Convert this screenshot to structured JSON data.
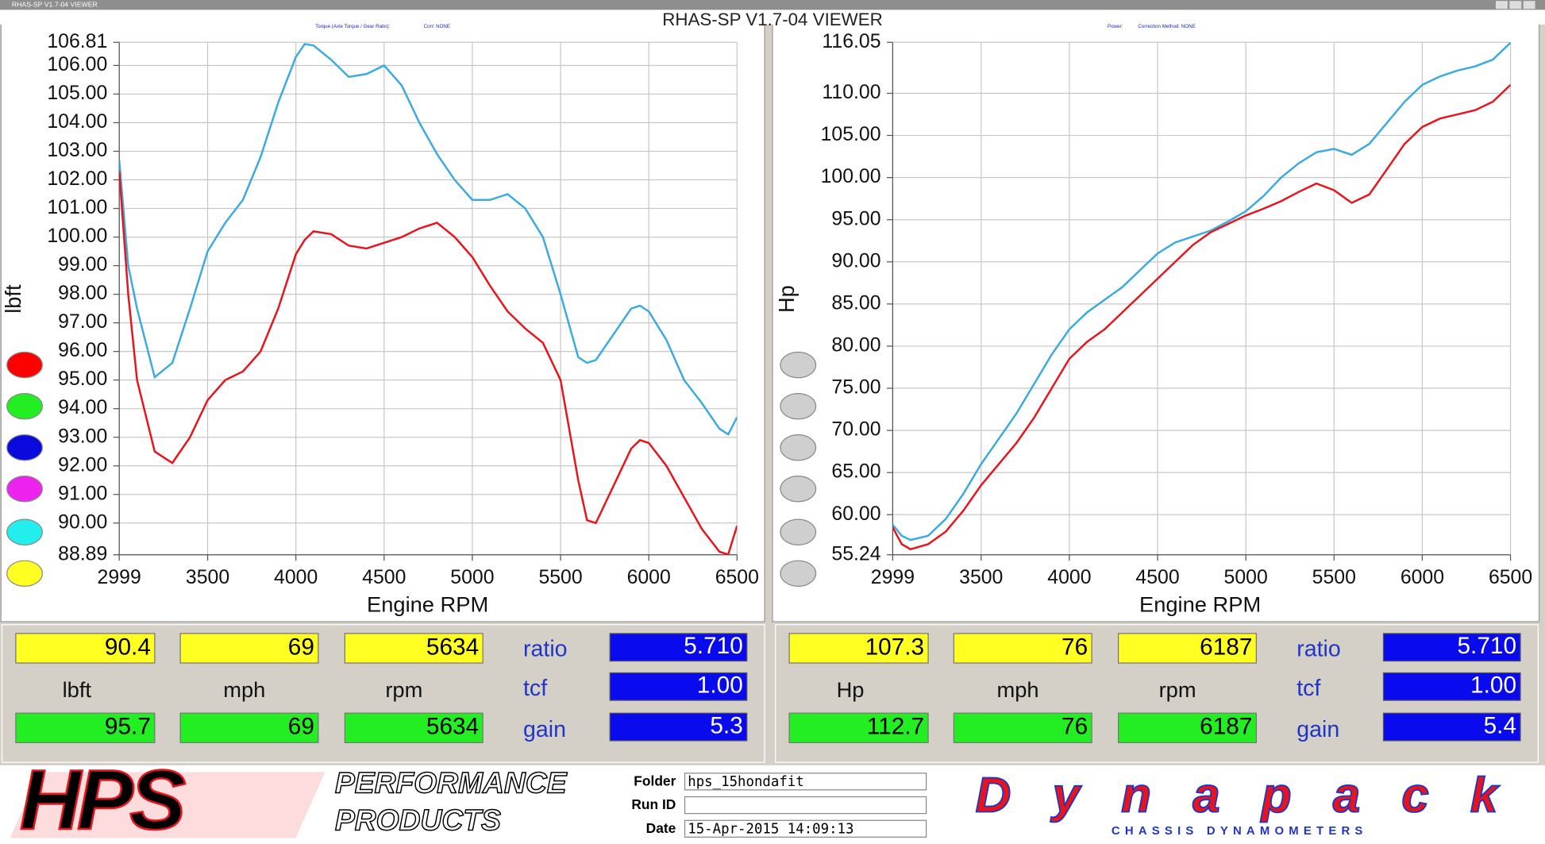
{
  "window": {
    "title": "RHAS-SP V1.7-04  VIEWER"
  },
  "chart_data": [
    {
      "type": "line",
      "header_label": "Torque (Axle Torque / Gear Ratio):",
      "header_value": "Corr: NONE",
      "y_label": "lbft",
      "x_label": "Engine RPM",
      "x": [
        2999,
        3050,
        3100,
        3200,
        3300,
        3400,
        3500,
        3600,
        3700,
        3800,
        3900,
        4000,
        4050,
        4100,
        4200,
        4300,
        4400,
        4500,
        4600,
        4700,
        4800,
        4900,
        5000,
        5100,
        5200,
        5300,
        5400,
        5500,
        5600,
        5650,
        5700,
        5800,
        5900,
        5950,
        6000,
        6100,
        6200,
        6300,
        6400,
        6450,
        6500
      ],
      "xlim": [
        2999,
        6500
      ],
      "xticks": [
        2999,
        3500,
        4000,
        4500,
        5000,
        5500,
        6000,
        6500
      ],
      "ylim": [
        88.89,
        106.81
      ],
      "yticks": [
        106.81,
        {
          "value": 106,
          "label": "106.00"
        },
        {
          "value": 105,
          "label": "105.00"
        },
        {
          "value": 104,
          "label": "104.00"
        },
        {
          "value": 103,
          "label": "103.00"
        },
        {
          "value": 102,
          "label": "102.00"
        },
        {
          "value": 101,
          "label": "101.00"
        },
        {
          "value": 100,
          "label": "100.00"
        },
        {
          "value": 99,
          "label": "99.00"
        },
        {
          "value": 98,
          "label": "98.00"
        },
        {
          "value": 97,
          "label": "97.00"
        },
        {
          "value": 96,
          "label": "96.00"
        },
        {
          "value": 95,
          "label": "95.00"
        },
        {
          "value": 94,
          "label": "94.00"
        },
        {
          "value": 93,
          "label": "93.00"
        },
        {
          "value": 92,
          "label": "92.00"
        },
        {
          "value": 91,
          "label": "91.00"
        },
        {
          "value": 90,
          "label": "90.00"
        },
        88.89
      ],
      "grid": true,
      "series": [
        {
          "color": "#3aaae0",
          "values": [
            102.7,
            99.0,
            97.5,
            95.1,
            95.6,
            97.5,
            99.5,
            100.5,
            101.3,
            102.8,
            104.7,
            106.3,
            106.75,
            106.7,
            106.2,
            105.6,
            105.7,
            106.0,
            105.3,
            104.0,
            102.9,
            102.0,
            101.3,
            101.3,
            101.5,
            101.0,
            100.0,
            98.0,
            95.8,
            95.6,
            95.7,
            96.6,
            97.5,
            97.6,
            97.4,
            96.4,
            95.0,
            94.2,
            93.3,
            93.1,
            93.7
          ]
        },
        {
          "color": "#e8141c",
          "values": [
            102.3,
            98.0,
            95.0,
            92.5,
            92.1,
            93.0,
            94.3,
            95.0,
            95.3,
            96.0,
            97.5,
            99.4,
            99.9,
            100.2,
            100.1,
            99.7,
            99.6,
            99.8,
            100.0,
            100.3,
            100.5,
            100.0,
            99.3,
            98.3,
            97.4,
            96.8,
            96.3,
            95.0,
            91.5,
            90.1,
            90.0,
            91.3,
            92.6,
            92.9,
            92.8,
            92.0,
            90.9,
            89.8,
            89.0,
            88.9,
            89.9
          ]
        }
      ]
    },
    {
      "type": "line",
      "header_label": "Power:",
      "header_value": "Correction Method: NONE",
      "y_label": "Hp",
      "x_label": "Engine RPM",
      "x": [
        2999,
        3050,
        3100,
        3200,
        3300,
        3400,
        3500,
        3600,
        3700,
        3800,
        3900,
        4000,
        4100,
        4200,
        4300,
        4400,
        4500,
        4600,
        4700,
        4800,
        4900,
        5000,
        5100,
        5200,
        5300,
        5400,
        5500,
        5600,
        5700,
        5800,
        5900,
        6000,
        6100,
        6200,
        6300,
        6400,
        6500
      ],
      "xlim": [
        2999,
        6500
      ],
      "xticks": [
        2999,
        3500,
        4000,
        4500,
        5000,
        5500,
        6000,
        6500
      ],
      "ylim": [
        55.24,
        116.05
      ],
      "yticks": [
        116.05,
        {
          "value": 110,
          "label": "110.00"
        },
        {
          "value": 105,
          "label": "105.00"
        },
        {
          "value": 100,
          "label": "100.00"
        },
        {
          "value": 95,
          "label": "95.00"
        },
        {
          "value": 90,
          "label": "90.00"
        },
        {
          "value": 85,
          "label": "85.00"
        },
        {
          "value": 80,
          "label": "80.00"
        },
        {
          "value": 75,
          "label": "75.00"
        },
        {
          "value": 70,
          "label": "70.00"
        },
        {
          "value": 65,
          "label": "65.00"
        },
        {
          "value": 60,
          "label": "60.00"
        },
        55.24
      ],
      "grid": true,
      "series": [
        {
          "color": "#3aaae0",
          "values": [
            58.8,
            57.5,
            57.0,
            57.5,
            59.5,
            62.5,
            66.0,
            69.0,
            72.0,
            75.5,
            79.0,
            82.0,
            84.0,
            85.5,
            87.0,
            89.0,
            91.0,
            92.3,
            93.0,
            93.7,
            94.8,
            96.0,
            97.8,
            100.0,
            101.7,
            103.0,
            103.4,
            102.7,
            104.0,
            106.5,
            109.0,
            111.0,
            112.0,
            112.7,
            113.2,
            114.0,
            116.0
          ]
        },
        {
          "color": "#e8141c",
          "values": [
            58.5,
            56.5,
            55.9,
            56.5,
            58.0,
            60.5,
            63.5,
            66.0,
            68.5,
            71.5,
            75.0,
            78.5,
            80.5,
            82.0,
            84.0,
            86.0,
            88.0,
            90.0,
            92.0,
            93.5,
            94.5,
            95.5,
            96.3,
            97.2,
            98.3,
            99.3,
            98.5,
            97.0,
            98.0,
            101.0,
            104.0,
            106.0,
            107.0,
            107.5,
            108.0,
            109.0,
            111.0
          ]
        }
      ]
    }
  ],
  "readouts": [
    {
      "top": [
        "90.4",
        "69",
        "5634"
      ],
      "units": [
        "lbft",
        "mph",
        "rpm"
      ],
      "bottom": [
        "95.7",
        "69",
        "5634"
      ],
      "settings": [
        {
          "label": "ratio",
          "value": "5.710"
        },
        {
          "label": "tcf",
          "value": "1.00"
        },
        {
          "label": "gain",
          "value": "5.3"
        }
      ]
    },
    {
      "top": [
        "107.3",
        "76",
        "6187"
      ],
      "units": [
        "Hp",
        "mph",
        "rpm"
      ],
      "bottom": [
        "112.7",
        "76",
        "6187"
      ],
      "settings": [
        {
          "label": "ratio",
          "value": "5.710"
        },
        {
          "label": "tcf",
          "value": "1.00"
        },
        {
          "label": "gain",
          "value": "5.4"
        }
      ]
    }
  ],
  "footer": {
    "logo_left": {
      "mark": "HPS",
      "line1": "PERFORMANCE",
      "line2": "PRODUCTS"
    },
    "fields": {
      "folder_label": "Folder",
      "folder": "hps_15hondafit",
      "run_label": "Run ID",
      "date_label": "Date",
      "date": "15-Apr-2015  14:09:13"
    },
    "logo_right": {
      "mark": "Dynapack",
      "tagline": "CHASSIS DYNAMOMETERS"
    }
  }
}
